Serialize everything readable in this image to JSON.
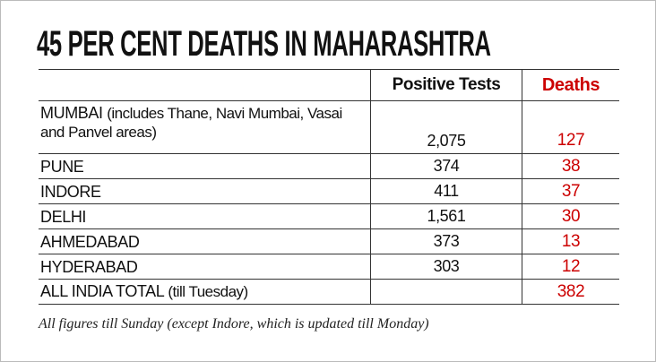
{
  "header": {
    "title": "45 PER CENT DEATHS IN MAHARASHTRA"
  },
  "table": {
    "columns": [
      "Positive Tests",
      "Deaths"
    ],
    "rows": [
      {
        "name": "MUMBAI",
        "note": "(includes Thane, Navi Mumbai, Vasai and Panvel areas)",
        "positive_tests": "2,075",
        "deaths": "127"
      },
      {
        "name": "PUNE",
        "positive_tests": "374",
        "deaths": "38"
      },
      {
        "name": "INDORE",
        "positive_tests": "411",
        "deaths": "37"
      },
      {
        "name": "DELHI",
        "positive_tests": "1,561",
        "deaths": "30"
      },
      {
        "name": "AHMEDABAD",
        "positive_tests": "373",
        "deaths": "13"
      },
      {
        "name": "HYDERABAD",
        "positive_tests": "303",
        "deaths": "12"
      },
      {
        "name": "ALL INDIA TOTAL",
        "note": "(till Tuesday)",
        "deaths": "382"
      }
    ]
  },
  "footnote": "All figures till Sunday (except Indore, which is updated till Monday)"
}
